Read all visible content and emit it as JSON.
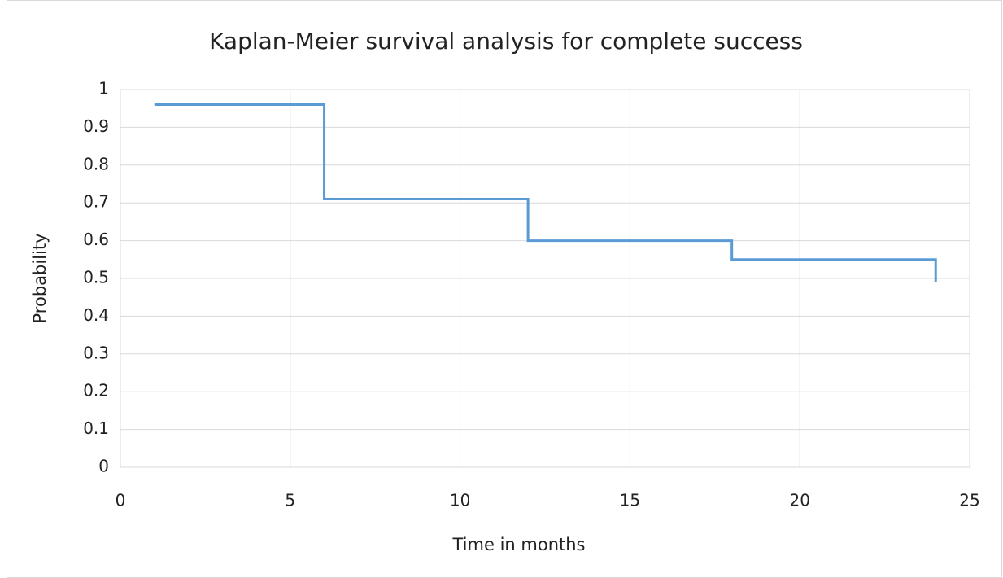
{
  "chart_data": {
    "type": "line",
    "title": "Kaplan-Meier survival analysis for complete success",
    "x_label": "Time in months",
    "y_label": "Probability",
    "x": [
      1,
      6,
      6,
      12,
      12,
      18,
      18,
      24,
      24
    ],
    "series": [
      {
        "name": "Probability",
        "color": "#5b9bd5",
        "values": [
          0.96,
          0.96,
          0.71,
          0.71,
          0.6,
          0.6,
          0.55,
          0.55,
          0.49
        ]
      }
    ],
    "xlim": [
      0,
      25
    ],
    "xticks": [
      0,
      5,
      10,
      15,
      20,
      25
    ],
    "ylim": [
      0,
      1
    ],
    "yticks": [
      0,
      0.1,
      0.2,
      0.3,
      0.4,
      0.5,
      0.6,
      0.7,
      0.8,
      0.9,
      1
    ],
    "grid": true
  }
}
